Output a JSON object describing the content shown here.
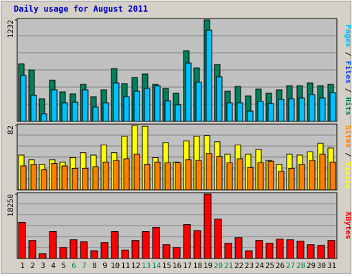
{
  "title": "Daily usage for August 2011",
  "chart_data": [
    {
      "type": "bar",
      "ylim": [
        0,
        1232
      ],
      "yticks": [
        1232
      ],
      "legend": [
        {
          "text": "Pages",
          "color": "#00c0ff"
        },
        {
          "text": "/",
          "color": "#000000"
        },
        {
          "text": "Files",
          "color": "#0040ff"
        },
        {
          "text": "/",
          "color": "#000000"
        },
        {
          "text": "Hits",
          "color": "#00805c"
        }
      ],
      "series": [
        {
          "color": "#00805c",
          "values": [
            695,
            620,
            268,
            494,
            352,
            327,
            444,
            293,
            377,
            637,
            453,
            528,
            570,
            444,
            394,
            335,
            855,
            645,
            1232,
            687,
            360,
            419,
            302,
            386,
            335,
            377,
            427,
            427,
            461,
            427,
            444
          ]
        },
        {
          "color": "#00c0ff",
          "values": [
            553,
            310,
            84,
            377,
            218,
            226,
            377,
            168,
            218,
            461,
            293,
            360,
            394,
            427,
            243,
            193,
            704,
            469,
            1106,
            536,
            218,
            218,
            117,
            235,
            210,
            260,
            268,
            277,
            318,
            277,
            344
          ]
        }
      ]
    },
    {
      "type": "bar",
      "ylim": [
        0,
        82
      ],
      "yticks": [
        82
      ],
      "legend": [
        {
          "text": "Sites",
          "color": "#ff8000"
        },
        {
          "text": "/",
          "color": "#000000"
        },
        {
          "text": "Visits",
          "color": "#ffff00"
        }
      ],
      "series": [
        {
          "color": "#ffff00",
          "values": [
            44,
            38,
            32,
            38,
            35,
            41,
            47,
            44,
            57,
            47,
            68,
            82,
            81,
            41,
            60,
            35,
            62,
            68,
            69,
            61,
            45,
            57,
            45,
            51,
            37,
            32,
            45,
            44,
            48,
            59,
            53
          ]
        },
        {
          "color": "#ff8000",
          "values": [
            30,
            32,
            25,
            33,
            30,
            27,
            27,
            29,
            35,
            37,
            39,
            45,
            32,
            35,
            34,
            34,
            38,
            37,
            46,
            42,
            34,
            39,
            28,
            34,
            36,
            23,
            27,
            32,
            37,
            45,
            35
          ]
        }
      ]
    },
    {
      "type": "bar",
      "ylim": [
        0,
        18250
      ],
      "yticks": [
        18250
      ],
      "legend": [
        {
          "text": "KBytes",
          "color": "#ff0000"
        }
      ],
      "categories": [
        "1",
        "2",
        "3",
        "4",
        "5",
        "6",
        "7",
        "8",
        "9",
        "10",
        "11",
        "12",
        "13",
        "14",
        "15",
        "16",
        "17",
        "18",
        "19",
        "20",
        "21",
        "22",
        "23",
        "24",
        "25",
        "26",
        "27",
        "28",
        "29",
        "30",
        "31"
      ],
      "category_colors": [
        "#000000",
        "#000000",
        "#000000",
        "#000000",
        "#000000",
        "#00805c",
        "#00805c",
        "#000000",
        "#000000",
        "#000000",
        "#000000",
        "#000000",
        "#00805c",
        "#00805c",
        "#000000",
        "#000000",
        "#000000",
        "#000000",
        "#000000",
        "#00805c",
        "#00805c",
        "#000000",
        "#000000",
        "#000000",
        "#000000",
        "#000000",
        "#00805c",
        "#00805c",
        "#000000",
        "#000000",
        "#000000"
      ],
      "series": [
        {
          "color": "#ff0000",
          "values": [
            10117,
            4959,
            1190,
            7538,
            2976,
            5158,
            4563,
            1984,
            4364,
            7538,
            2182,
            4959,
            7538,
            8728,
            3769,
            2976,
            9522,
            7737,
            18250,
            11109,
            4166,
            5753,
            1984,
            4959,
            4166,
            5356,
            5158,
            4761,
            3769,
            3571,
            4959
          ]
        }
      ]
    }
  ]
}
